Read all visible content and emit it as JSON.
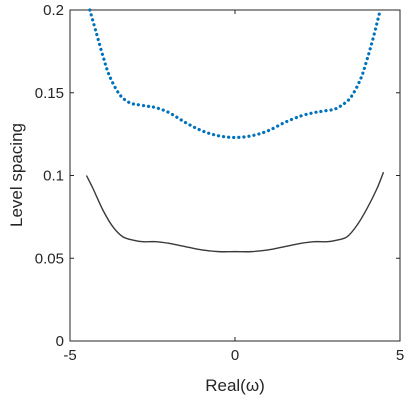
{
  "chart_data": {
    "type": "line",
    "title": "",
    "xlabel": "Real(ω)",
    "ylabel": "Level spacing",
    "xlim": [
      -5,
      5
    ],
    "ylim": [
      0,
      0.2
    ],
    "xticks": [
      -5,
      0,
      5
    ],
    "yticks": [
      0,
      0.05,
      0.1,
      0.15,
      0.2
    ],
    "xtick_labels": [
      "-5",
      "0",
      "5"
    ],
    "ytick_labels": [
      "0",
      "0.05",
      "0.1",
      "0.15",
      "0.2"
    ],
    "grid": false,
    "legend": "none",
    "series": [
      {
        "style": "dotted",
        "color": "#0072BD",
        "x": [
          -4.4,
          -4.2,
          -4.0,
          -3.8,
          -3.5,
          -3.2,
          -3.0,
          -2.7,
          -2.4,
          -2.0,
          -1.5,
          -1.0,
          -0.5,
          0.0,
          0.5,
          1.0,
          1.5,
          2.0,
          2.4,
          2.7,
          3.0,
          3.2,
          3.5,
          3.8,
          4.0,
          4.2,
          4.4
        ],
        "y": [
          0.2,
          0.186,
          0.172,
          0.16,
          0.149,
          0.144,
          0.143,
          0.142,
          0.141,
          0.138,
          0.132,
          0.127,
          0.124,
          0.123,
          0.124,
          0.127,
          0.132,
          0.136,
          0.138,
          0.139,
          0.14,
          0.142,
          0.147,
          0.158,
          0.17,
          0.184,
          0.2
        ]
      },
      {
        "style": "solid",
        "color": "#3a3a3a",
        "x": [
          -4.5,
          -4.3,
          -4.0,
          -3.7,
          -3.4,
          -3.1,
          -2.8,
          -2.4,
          -2.0,
          -1.5,
          -1.0,
          -0.5,
          0.0,
          0.5,
          1.0,
          1.5,
          2.0,
          2.4,
          2.8,
          3.1,
          3.4,
          3.7,
          4.0,
          4.3,
          4.5
        ],
        "y": [
          0.1,
          0.092,
          0.079,
          0.069,
          0.063,
          0.061,
          0.06,
          0.06,
          0.059,
          0.057,
          0.055,
          0.054,
          0.054,
          0.054,
          0.055,
          0.057,
          0.059,
          0.06,
          0.06,
          0.061,
          0.063,
          0.07,
          0.08,
          0.092,
          0.102
        ]
      }
    ]
  }
}
